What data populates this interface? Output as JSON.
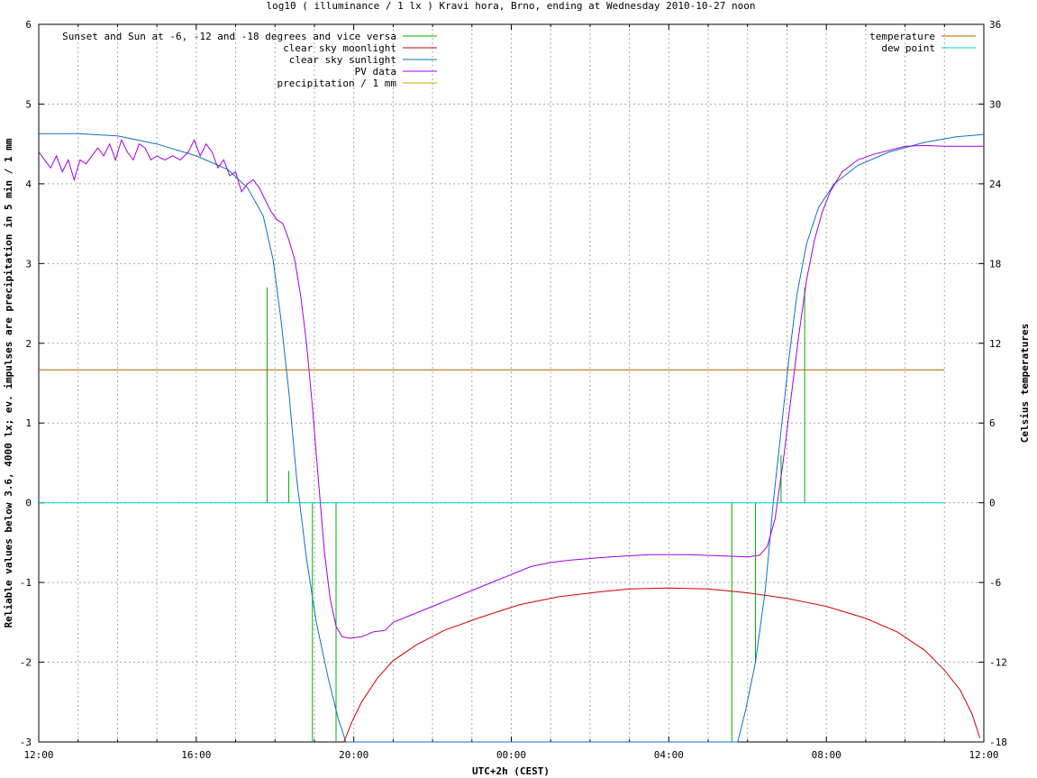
{
  "chart_data": {
    "type": "line",
    "title": "log10 ( illuminance / 1 lx ) Kravi hora, Brno, ending at Wednesday 2010-10-27 noon",
    "xlabel": "UTC+2h (CEST)",
    "ylabel": "Reliable values below 3.6, 4000 lx; ev. impulses are precipitation in 5 min / 1 mm",
    "y2label": "Celsius temperatures",
    "x_range_hours": [
      0,
      24
    ],
    "ylim": [
      -3,
      6
    ],
    "y2lim": [
      -18,
      36
    ],
    "x_ticks": [
      {
        "h": 0,
        "label": "12:00"
      },
      {
        "h": 4,
        "label": "16:00"
      },
      {
        "h": 8,
        "label": "20:00"
      },
      {
        "h": 12,
        "label": "00:00"
      },
      {
        "h": 16,
        "label": "04:00"
      },
      {
        "h": 20,
        "label": "08:00"
      },
      {
        "h": 24,
        "label": "12:00"
      }
    ],
    "y_ticks": [
      {
        "v": -3,
        "label": "-3"
      },
      {
        "v": -2,
        "label": "-2"
      },
      {
        "v": -1,
        "label": "-1"
      },
      {
        "v": 0,
        "label": "0"
      },
      {
        "v": 1,
        "label": "1"
      },
      {
        "v": 2,
        "label": "2"
      },
      {
        "v": 3,
        "label": "3"
      },
      {
        "v": 4,
        "label": "4"
      },
      {
        "v": 5,
        "label": "5"
      },
      {
        "v": 6,
        "label": "6"
      }
    ],
    "y2_ticks": [
      {
        "v": -18,
        "label": "-18"
      },
      {
        "v": -12,
        "label": "-12"
      },
      {
        "v": -6,
        "label": "-6"
      },
      {
        "v": 0,
        "label": "0"
      },
      {
        "v": 6,
        "label": "6"
      },
      {
        "v": 12,
        "label": "12"
      },
      {
        "v": 18,
        "label": "18"
      },
      {
        "v": 24,
        "label": "24"
      },
      {
        "v": 30,
        "label": "30"
      },
      {
        "v": 36,
        "label": "36"
      }
    ],
    "grid": true,
    "legend_left": [
      {
        "label": "Sunset and Sun at -6, -12 and -18 degrees and vice versa",
        "color": "#00b000"
      },
      {
        "label": "clear sky moonlight",
        "color": "#d00000"
      },
      {
        "label": "clear sky sunlight",
        "color": "#1070c0"
      },
      {
        "label": "PV data",
        "color": "#a000e0"
      },
      {
        "label": "precipitation / 1 mm",
        "color": "#e0a000"
      }
    ],
    "legend_right": [
      {
        "label": "temperature",
        "color": "#b06000"
      },
      {
        "label": "dew point",
        "color": "#00d0d0"
      }
    ],
    "sun_markers": {
      "color": "#00b000",
      "markers": [
        {
          "h": 5.8,
          "from": 0,
          "to": 2.7
        },
        {
          "h": 6.35,
          "from": 0,
          "to": 0.4
        },
        {
          "h": 6.95,
          "from": 0,
          "to": -3
        },
        {
          "h": 7.55,
          "from": 0,
          "to": -3
        },
        {
          "h": 17.6,
          "from": 0,
          "to": -3
        },
        {
          "h": 18.2,
          "from": 0,
          "to": -2.0
        },
        {
          "h": 18.85,
          "from": 0,
          "to": 0.6
        },
        {
          "h": 19.45,
          "from": 0,
          "to": 2.7
        }
      ]
    },
    "series": [
      {
        "name": "clear sky sunlight",
        "color": "#1070c0",
        "axis": "y",
        "points": [
          [
            0,
            4.63
          ],
          [
            1,
            4.63
          ],
          [
            2,
            4.6
          ],
          [
            3,
            4.5
          ],
          [
            4,
            4.35
          ],
          [
            4.8,
            4.18
          ],
          [
            5.3,
            3.95
          ],
          [
            5.7,
            3.6
          ],
          [
            5.95,
            3.05
          ],
          [
            6.15,
            2.3
          ],
          [
            6.35,
            1.4
          ],
          [
            6.55,
            0.3
          ],
          [
            6.8,
            -0.7
          ],
          [
            7.05,
            -1.5
          ],
          [
            7.35,
            -2.2
          ],
          [
            7.6,
            -2.7
          ],
          [
            7.8,
            -3.0
          ],
          [
            17.75,
            -3.0
          ],
          [
            17.95,
            -2.6
          ],
          [
            18.2,
            -2.0
          ],
          [
            18.45,
            -1.1
          ],
          [
            18.65,
            0.0
          ],
          [
            18.85,
            0.9
          ],
          [
            19.05,
            1.8
          ],
          [
            19.25,
            2.6
          ],
          [
            19.5,
            3.25
          ],
          [
            19.8,
            3.7
          ],
          [
            20.2,
            4.0
          ],
          [
            20.8,
            4.23
          ],
          [
            21.6,
            4.4
          ],
          [
            22.5,
            4.52
          ],
          [
            23.3,
            4.59
          ],
          [
            24,
            4.62
          ]
        ]
      },
      {
        "name": "PV data",
        "color": "#a000e0",
        "axis": "y",
        "points": [
          [
            0,
            4.4
          ],
          [
            0.15,
            4.3
          ],
          [
            0.3,
            4.2
          ],
          [
            0.45,
            4.35
          ],
          [
            0.6,
            4.15
          ],
          [
            0.75,
            4.3
          ],
          [
            0.9,
            4.05
          ],
          [
            1.05,
            4.3
          ],
          [
            1.2,
            4.25
          ],
          [
            1.35,
            4.35
          ],
          [
            1.5,
            4.45
          ],
          [
            1.65,
            4.35
          ],
          [
            1.8,
            4.5
          ],
          [
            1.95,
            4.3
          ],
          [
            2.1,
            4.55
          ],
          [
            2.25,
            4.4
          ],
          [
            2.4,
            4.3
          ],
          [
            2.55,
            4.5
          ],
          [
            2.7,
            4.45
          ],
          [
            2.85,
            4.3
          ],
          [
            3.0,
            4.35
          ],
          [
            3.2,
            4.3
          ],
          [
            3.4,
            4.35
          ],
          [
            3.6,
            4.3
          ],
          [
            3.8,
            4.4
          ],
          [
            3.95,
            4.55
          ],
          [
            4.1,
            4.35
          ],
          [
            4.25,
            4.5
          ],
          [
            4.4,
            4.4
          ],
          [
            4.55,
            4.2
          ],
          [
            4.7,
            4.3
          ],
          [
            4.85,
            4.1
          ],
          [
            5.0,
            4.15
          ],
          [
            5.15,
            3.9
          ],
          [
            5.3,
            4.0
          ],
          [
            5.45,
            4.05
          ],
          [
            5.6,
            3.95
          ],
          [
            5.75,
            3.8
          ],
          [
            5.9,
            3.65
          ],
          [
            6.05,
            3.55
          ],
          [
            6.2,
            3.5
          ],
          [
            6.35,
            3.3
          ],
          [
            6.5,
            3.05
          ],
          [
            6.65,
            2.6
          ],
          [
            6.8,
            2.0
          ],
          [
            6.95,
            1.2
          ],
          [
            7.1,
            0.3
          ],
          [
            7.25,
            -0.6
          ],
          [
            7.4,
            -1.2
          ],
          [
            7.55,
            -1.55
          ],
          [
            7.7,
            -1.68
          ],
          [
            7.9,
            -1.7
          ],
          [
            8.2,
            -1.68
          ],
          [
            8.5,
            -1.62
          ],
          [
            8.8,
            -1.6
          ],
          [
            9.0,
            -1.5
          ],
          [
            9.5,
            -1.4
          ],
          [
            10.0,
            -1.3
          ],
          [
            10.5,
            -1.2
          ],
          [
            11.0,
            -1.1
          ],
          [
            11.5,
            -1.0
          ],
          [
            12.0,
            -0.9
          ],
          [
            12.5,
            -0.8
          ],
          [
            13.0,
            -0.75
          ],
          [
            13.5,
            -0.72
          ],
          [
            14.5,
            -0.68
          ],
          [
            15.5,
            -0.65
          ],
          [
            16.5,
            -0.65
          ],
          [
            17.5,
            -0.67
          ],
          [
            18.0,
            -0.68
          ],
          [
            18.3,
            -0.66
          ],
          [
            18.5,
            -0.55
          ],
          [
            18.7,
            -0.2
          ],
          [
            18.9,
            0.5
          ],
          [
            19.1,
            1.3
          ],
          [
            19.3,
            2.1
          ],
          [
            19.5,
            2.8
          ],
          [
            19.7,
            3.3
          ],
          [
            19.9,
            3.65
          ],
          [
            20.1,
            3.9
          ],
          [
            20.4,
            4.15
          ],
          [
            20.8,
            4.3
          ],
          [
            21.2,
            4.37
          ],
          [
            21.6,
            4.42
          ],
          [
            22.0,
            4.47
          ],
          [
            22.5,
            4.48
          ],
          [
            23.0,
            4.47
          ],
          [
            23.5,
            4.47
          ],
          [
            24.0,
            4.47
          ]
        ]
      },
      {
        "name": "clear sky moonlight",
        "color": "#d00000",
        "axis": "y",
        "points": [
          [
            7.75,
            -3.0
          ],
          [
            7.95,
            -2.75
          ],
          [
            8.2,
            -2.5
          ],
          [
            8.6,
            -2.2
          ],
          [
            9.0,
            -1.98
          ],
          [
            9.6,
            -1.78
          ],
          [
            10.3,
            -1.6
          ],
          [
            11.2,
            -1.44
          ],
          [
            12.2,
            -1.28
          ],
          [
            13.2,
            -1.18
          ],
          [
            14.2,
            -1.12
          ],
          [
            15.0,
            -1.08
          ],
          [
            16.0,
            -1.07
          ],
          [
            17.0,
            -1.08
          ],
          [
            18.0,
            -1.13
          ],
          [
            19.0,
            -1.2
          ],
          [
            20.0,
            -1.3
          ],
          [
            21.0,
            -1.45
          ],
          [
            21.8,
            -1.62
          ],
          [
            22.5,
            -1.85
          ],
          [
            23.0,
            -2.1
          ],
          [
            23.4,
            -2.35
          ],
          [
            23.7,
            -2.65
          ],
          [
            23.9,
            -2.95
          ]
        ]
      },
      {
        "name": "temperature",
        "color": "#b06000",
        "axis": "y2",
        "points": [
          [
            0,
            10
          ],
          [
            23,
            10
          ]
        ]
      },
      {
        "name": "dew point",
        "color": "#00d0d0",
        "axis": "y2",
        "points": [
          [
            0,
            0
          ],
          [
            23,
            0
          ]
        ]
      }
    ]
  }
}
